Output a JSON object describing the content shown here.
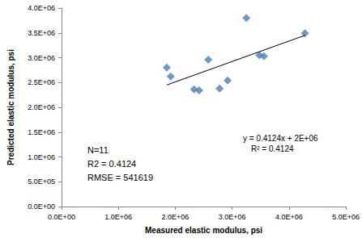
{
  "chart_data": {
    "type": "scatter",
    "x_label": "Measured elastic modulus, psi",
    "y_label": "Predicted elastic modulus, psi",
    "series": [
      {
        "type": "scatter",
        "color": "#4a7ebb",
        "marker": "diamond",
        "x": [
          1850000,
          1920000,
          2330000,
          2420000,
          2580000,
          2780000,
          2920000,
          3250000,
          3480000,
          3560000,
          4280000
        ],
        "values": [
          2800000,
          2620000,
          2360000,
          2340000,
          2960000,
          2380000,
          2540000,
          3800000,
          3050000,
          3030000,
          3490000
        ]
      },
      {
        "type": "line",
        "color": "#000000",
        "line_style": "solid",
        "x": [
          1850000,
          4280000
        ],
        "values": [
          2450000,
          3450000
        ],
        "labels": [
          "y = 0.4124x + 2E+06",
          "R² = 0.4124"
        ]
      }
    ],
    "annotations": [
      "N=11",
      "R2 = 0.4124",
      "RMSE = 541619"
    ],
    "xlim": [
      0,
      5000000
    ],
    "xticks": [
      {
        "value": 0,
        "label": "0.0E+00"
      },
      {
        "value": 1000000,
        "label": "1.0E+06"
      },
      {
        "value": 2000000,
        "label": "2.0E+06"
      },
      {
        "value": 3000000,
        "label": "3.0E+06"
      },
      {
        "value": 4000000,
        "label": "4.0E+06"
      },
      {
        "value": 5000000,
        "label": "5.0E+06"
      }
    ],
    "ylim": [
      0,
      4000000
    ],
    "yticks": [
      {
        "value": 0,
        "label": "0.0E+00"
      },
      {
        "value": 500000,
        "label": "5.0E+05"
      },
      {
        "value": 1000000,
        "label": "1.0E+06"
      },
      {
        "value": 1500000,
        "label": "1.5E+06"
      },
      {
        "value": 2000000,
        "label": "2.0E+06"
      },
      {
        "value": 2500000,
        "label": "2.5E+06"
      },
      {
        "value": 3000000,
        "label": "3.0E+06"
      },
      {
        "value": 3500000,
        "label": "3.5E+06"
      },
      {
        "value": 4000000,
        "label": "4.0E+06"
      }
    ],
    "grid": false
  }
}
